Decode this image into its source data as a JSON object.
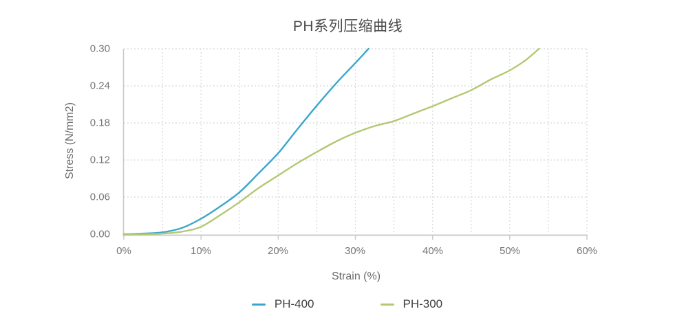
{
  "chart_data": {
    "type": "line",
    "title": "PH系列压缩曲线",
    "xlabel": "Strain (%)",
    "ylabel": "Stress (N/mm2)",
    "xlim": [
      0,
      60
    ],
    "ylim": [
      0,
      0.3
    ],
    "x_ticks": [
      "0%",
      "10%",
      "20%",
      "30%",
      "40%",
      "50%",
      "60%"
    ],
    "y_ticks": [
      "0.30",
      "0.24",
      "0.18",
      "0.12",
      "0.06",
      "0.00"
    ],
    "grid": "dotted; vertical every 5%, horizontal every 0.06",
    "legend_position": "bottom center",
    "series": [
      {
        "name": "PH-400",
        "color": "#3aa6ce",
        "x": [
          0,
          2.5,
          5,
          7.5,
          10,
          12.5,
          15,
          17.5,
          20,
          22.5,
          25,
          27.5,
          30,
          31.7
        ],
        "y": [
          0,
          0.001,
          0.003,
          0.01,
          0.025,
          0.045,
          0.068,
          0.099,
          0.131,
          0.17,
          0.208,
          0.244,
          0.277,
          0.3
        ]
      },
      {
        "name": "PH-300",
        "color": "#b3c873",
        "x": [
          0,
          2.5,
          5,
          7.5,
          10,
          12.5,
          15,
          17.5,
          20,
          22.5,
          25,
          27.5,
          30,
          32.5,
          35,
          37.5,
          40,
          42.5,
          45,
          47.5,
          50,
          52,
          53.8
        ],
        "y": [
          0,
          0.0,
          0.001,
          0.004,
          0.012,
          0.031,
          0.052,
          0.075,
          0.095,
          0.115,
          0.133,
          0.15,
          0.164,
          0.175,
          0.183,
          0.195,
          0.207,
          0.22,
          0.233,
          0.25,
          0.265,
          0.281,
          0.3
        ]
      }
    ]
  },
  "colors": {
    "grid": "#d9d9d9",
    "axis": "#cbcbcb",
    "tick_text": "#757575",
    "axis_title_text": "#6b6b6b",
    "title_text": "#4a4a4a",
    "legend_text": "#3e3e3e",
    "background": "#ffffff"
  }
}
